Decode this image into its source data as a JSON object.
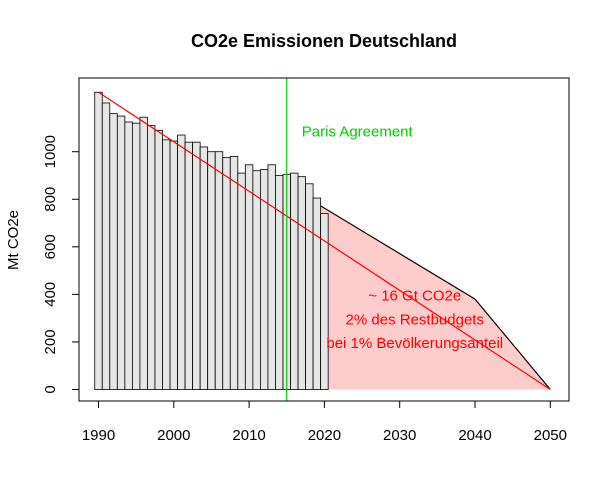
{
  "chart_data": {
    "type": "bar",
    "title": "CO2e Emissionen Deutschland",
    "xlabel": "",
    "ylabel": "Mt CO2e",
    "xlim": [
      1990,
      2050
    ],
    "ylim": [
      0,
      1250
    ],
    "x_ticks": [
      1990,
      2000,
      2010,
      2020,
      2030,
      2040,
      2050
    ],
    "y_ticks": [
      0,
      200,
      400,
      600,
      800,
      1000
    ],
    "grid": false,
    "bars": {
      "years": [
        1990,
        1991,
        1992,
        1993,
        1994,
        1995,
        1996,
        1997,
        1998,
        1999,
        2000,
        2001,
        2002,
        2003,
        2004,
        2005,
        2006,
        2007,
        2008,
        2009,
        2010,
        2011,
        2012,
        2013,
        2014,
        2015,
        2016,
        2017,
        2018,
        2019,
        2020
      ],
      "values": [
        1250,
        1205,
        1160,
        1150,
        1125,
        1120,
        1145,
        1110,
        1090,
        1050,
        1045,
        1070,
        1040,
        1040,
        1020,
        1000,
        1000,
        975,
        980,
        910,
        945,
        920,
        925,
        945,
        900,
        905,
        910,
        895,
        865,
        805,
        740
      ],
      "fill": "#e6e6e6",
      "stroke": "#000000"
    },
    "trend_line": {
      "x": [
        1990,
        2050
      ],
      "y": [
        1250,
        0
      ],
      "color": "#ff0000"
    },
    "budget_area": {
      "x": [
        2017,
        2040,
        2050
      ],
      "y": [
        820,
        380,
        0
      ],
      "fill": "#ffcccc",
      "stroke": "#000000"
    },
    "paris_line": {
      "x": 2015,
      "color": "#00cc00",
      "label": "Paris Agreement",
      "label_x": 2017,
      "label_y": 1085
    },
    "annotation": {
      "lines": [
        "~ 16 Gt CO2e",
        "2% des Restbudgets",
        "bei 1% Bevölkerungsanteil"
      ],
      "color": "#ff0000",
      "x": 2032,
      "y_top": 395,
      "line_step": 100
    }
  }
}
